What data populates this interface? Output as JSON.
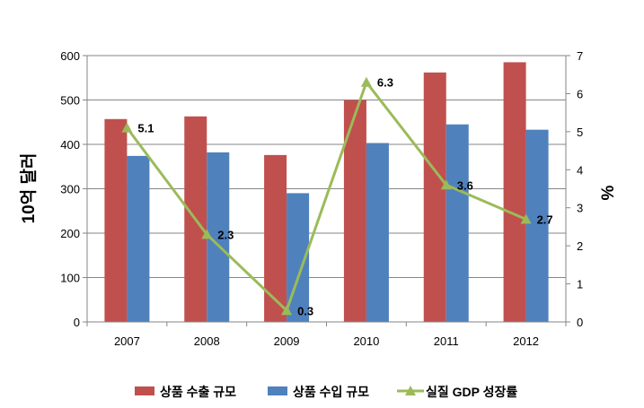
{
  "chart_data": {
    "type": "bar",
    "categories": [
      "2007",
      "2008",
      "2009",
      "2010",
      "2011",
      "2012"
    ],
    "series": [
      {
        "name": "상품 수출 규모",
        "kind": "bar",
        "axis": "left",
        "color": "#C0504D",
        "values": [
          457,
          463,
          376,
          500,
          562,
          585
        ]
      },
      {
        "name": "상품 수입 규모",
        "kind": "bar",
        "axis": "left",
        "color": "#4F81BD",
        "values": [
          374,
          382,
          290,
          403,
          445,
          433
        ]
      },
      {
        "name": "실질 GDP 성장률",
        "kind": "line",
        "axis": "right",
        "color": "#9BBB59",
        "values": [
          5.1,
          2.3,
          0.3,
          6.3,
          3.6,
          2.7
        ],
        "labels": [
          "5.1",
          "2.3",
          "0.3",
          "6.3",
          "3.6",
          "2.7"
        ]
      }
    ],
    "ylabel": "10억 달러",
    "y2label": "%",
    "ylim": [
      0,
      600
    ],
    "y2lim": [
      0,
      7
    ],
    "yticks": [
      "0",
      "100",
      "200",
      "300",
      "400",
      "500",
      "600"
    ],
    "y2ticks": [
      "0",
      "1",
      "2",
      "3",
      "4",
      "5",
      "6",
      "7"
    ],
    "grid": true,
    "legend": "bottom"
  }
}
